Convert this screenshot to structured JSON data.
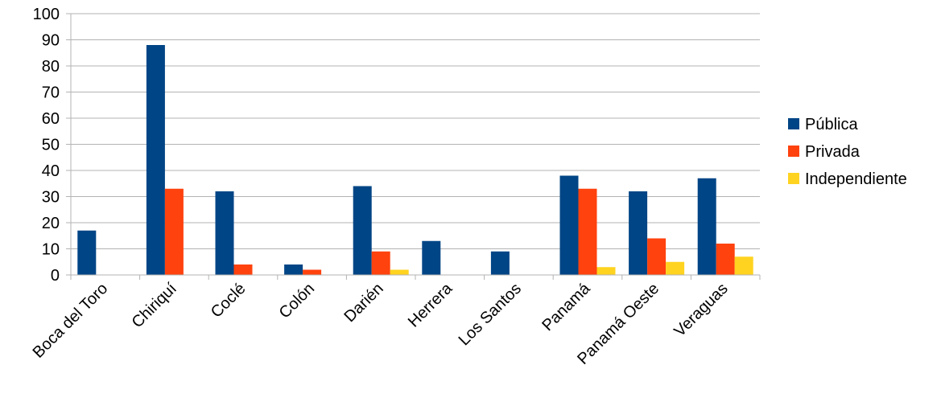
{
  "chart_data": {
    "type": "bar",
    "title": "",
    "xlabel": "",
    "ylabel": "",
    "categories": [
      "Boca del Toro",
      "Chiriquí",
      "Coclé",
      "Colón",
      "Darién",
      "Herrera",
      "Los Santos",
      "Panamá",
      "Panamá Oeste",
      "Veraguas"
    ],
    "series": [
      {
        "name": "Pública",
        "color": "#004586",
        "values": [
          17,
          88,
          32,
          4,
          34,
          13,
          9,
          38,
          32,
          37
        ]
      },
      {
        "name": "Privada",
        "color": "#ff420e",
        "values": [
          0,
          33,
          4,
          2,
          9,
          0,
          0,
          33,
          14,
          12
        ]
      },
      {
        "name": "Independiente",
        "color": "#ffd320",
        "values": [
          0,
          0,
          0,
          0,
          2,
          0,
          0,
          3,
          5,
          7
        ]
      }
    ],
    "ylim": [
      0,
      100
    ],
    "yticks": [
      0,
      10,
      20,
      30,
      40,
      50,
      60,
      70,
      80,
      90,
      100
    ],
    "grid": true,
    "legend": "right"
  }
}
